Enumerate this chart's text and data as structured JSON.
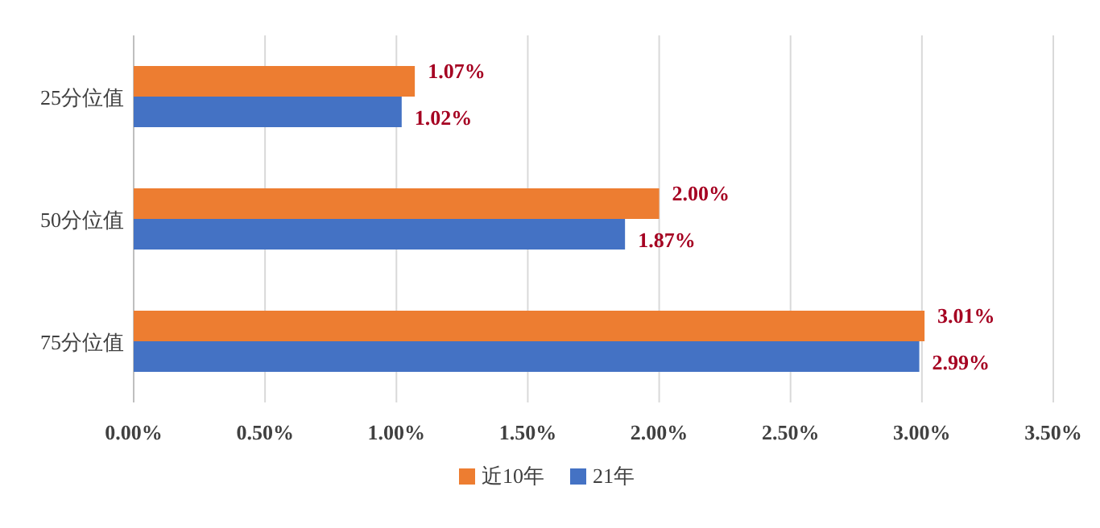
{
  "chart_data": {
    "type": "bar",
    "orientation": "horizontal",
    "categories": [
      "25分位值",
      "50分位值",
      "75分位值"
    ],
    "series": [
      {
        "name": "近10年",
        "color": "#ed7d31",
        "values": [
          1.07,
          2.0,
          3.01
        ],
        "value_labels": [
          "1.07%",
          "2.00%",
          "3.01%"
        ]
      },
      {
        "name": "21年",
        "color": "#4472c4",
        "values": [
          1.02,
          1.87,
          2.99
        ],
        "value_labels": [
          "1.02%",
          "1.87%",
          "2.99%"
        ]
      }
    ],
    "xlim": [
      0,
      3.5
    ],
    "xticks": [
      {
        "value": 0,
        "label": "0.00%"
      },
      {
        "value": 0.5,
        "label": "0.50%"
      },
      {
        "value": 1,
        "label": "1.00%"
      },
      {
        "value": 1.5,
        "label": "1.50%"
      },
      {
        "value": 2,
        "label": "2.00%"
      },
      {
        "value": 2.5,
        "label": "2.50%"
      },
      {
        "value": 3,
        "label": "3.00%"
      },
      {
        "value": 3.5,
        "label": "3.50%"
      }
    ],
    "grid": "x",
    "legend": "bottom"
  }
}
